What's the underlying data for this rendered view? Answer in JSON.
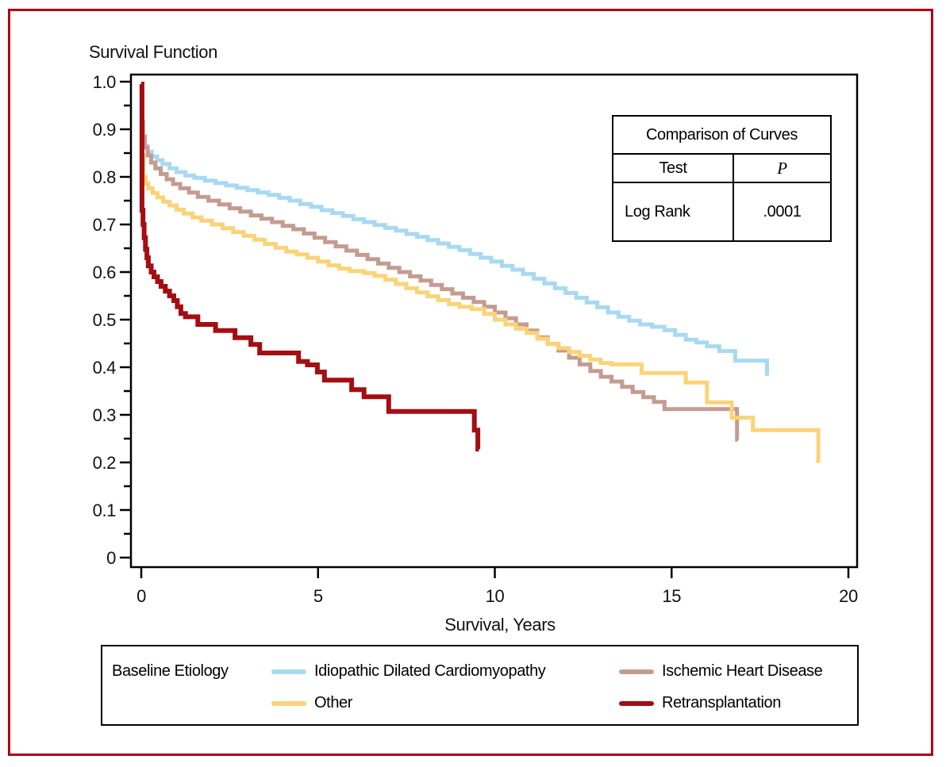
{
  "figure": {
    "title": "Survival Function",
    "border_color": "#B00119",
    "x_axis": {
      "label": "Survival, Years",
      "tick_labels": [
        "0",
        "5",
        "10",
        "15",
        "20"
      ],
      "tick_values": [
        0,
        5,
        10,
        15,
        20
      ],
      "range": [
        0,
        20
      ]
    },
    "y_axis": {
      "label": "",
      "tick_labels": [
        "1.0",
        "0.9",
        "0.8",
        "0.7",
        "0.6",
        "0.5",
        "0.4",
        "0.3",
        "0.2",
        "0.1",
        "0"
      ],
      "tick_values": [
        1.0,
        0.9,
        0.8,
        0.7,
        0.6,
        0.5,
        0.4,
        0.3,
        0.2,
        0.1,
        0
      ],
      "minor_tick_values": [
        0.95,
        0.85,
        0.75,
        0.65,
        0.55,
        0.45,
        0.35,
        0.25,
        0.15,
        0.05
      ],
      "range": [
        0,
        1
      ]
    }
  },
  "stats_table": {
    "title": "Comparison of Curves",
    "columns": [
      "Test",
      "P"
    ],
    "rows": [
      [
        "Log Rank",
        ".0001"
      ]
    ]
  },
  "legend": {
    "title": "Baseline Etiology"
  },
  "chart_data": {
    "type": "line",
    "subtype": "kaplan-meier-step",
    "title": "Survival Function",
    "xlabel": "Survival, Years",
    "ylabel": "",
    "xlim": [
      0,
      20
    ],
    "ylim": [
      0,
      1
    ],
    "grid": false,
    "legend_position": "bottom",
    "annotation": {
      "test": "Log Rank",
      "p_value": ".0001"
    },
    "series": [
      {
        "name": "Idiopathic Dilated Cardiomyopathy",
        "color": "#A8D9F2",
        "points": [
          [
            0,
            0.88
          ],
          [
            0.08,
            0.865
          ],
          [
            0.18,
            0.853
          ],
          [
            0.3,
            0.843
          ],
          [
            0.45,
            0.835
          ],
          [
            0.6,
            0.827
          ],
          [
            0.8,
            0.818
          ],
          [
            1,
            0.81
          ],
          [
            1.25,
            0.803
          ],
          [
            1.5,
            0.798
          ],
          [
            1.8,
            0.792
          ],
          [
            2.1,
            0.787
          ],
          [
            2.4,
            0.782
          ],
          [
            2.7,
            0.777
          ],
          [
            3,
            0.772
          ],
          [
            3.3,
            0.767
          ],
          [
            3.6,
            0.762
          ],
          [
            3.9,
            0.756
          ],
          [
            4.2,
            0.75
          ],
          [
            4.5,
            0.743
          ],
          [
            4.8,
            0.737
          ],
          [
            5.1,
            0.73
          ],
          [
            5.4,
            0.724
          ],
          [
            5.7,
            0.718
          ],
          [
            6,
            0.711
          ],
          [
            6.3,
            0.705
          ],
          [
            6.6,
            0.699
          ],
          [
            6.9,
            0.693
          ],
          [
            7.2,
            0.687
          ],
          [
            7.5,
            0.68
          ],
          [
            7.8,
            0.674
          ],
          [
            8.1,
            0.667
          ],
          [
            8.4,
            0.66
          ],
          [
            8.7,
            0.653
          ],
          [
            9,
            0.646
          ],
          [
            9.3,
            0.638
          ],
          [
            9.6,
            0.63
          ],
          [
            9.9,
            0.622
          ],
          [
            10.2,
            0.613
          ],
          [
            10.5,
            0.605
          ],
          [
            10.8,
            0.596
          ],
          [
            11.1,
            0.586
          ],
          [
            11.4,
            0.576
          ],
          [
            11.7,
            0.566
          ],
          [
            12,
            0.556
          ],
          [
            12.3,
            0.546
          ],
          [
            12.6,
            0.536
          ],
          [
            12.9,
            0.526
          ],
          [
            13.2,
            0.515
          ],
          [
            13.5,
            0.506
          ],
          [
            13.8,
            0.498
          ],
          [
            14.1,
            0.49
          ],
          [
            14.45,
            0.485
          ],
          [
            14.8,
            0.478
          ],
          [
            15.1,
            0.468
          ],
          [
            15.4,
            0.458
          ],
          [
            15.7,
            0.452
          ],
          [
            16,
            0.444
          ],
          [
            16.35,
            0.434
          ],
          [
            16.8,
            0.414
          ],
          [
            17.68,
            0.414
          ],
          [
            17.7,
            0.386
          ],
          [
            17.75,
            0.386
          ]
        ]
      },
      {
        "name": "Ischemic Heart Disease",
        "color": "#C49B91",
        "points": [
          [
            0,
            0.915
          ],
          [
            0.05,
            0.885
          ],
          [
            0.1,
            0.862
          ],
          [
            0.18,
            0.845
          ],
          [
            0.28,
            0.83
          ],
          [
            0.4,
            0.818
          ],
          [
            0.55,
            0.806
          ],
          [
            0.72,
            0.795
          ],
          [
            0.9,
            0.785
          ],
          [
            1.1,
            0.776
          ],
          [
            1.35,
            0.767
          ],
          [
            1.6,
            0.758
          ],
          [
            1.9,
            0.75
          ],
          [
            2.2,
            0.742
          ],
          [
            2.5,
            0.734
          ],
          [
            2.8,
            0.727
          ],
          [
            3.1,
            0.719
          ],
          [
            3.4,
            0.712
          ],
          [
            3.7,
            0.705
          ],
          [
            4,
            0.697
          ],
          [
            4.3,
            0.69
          ],
          [
            4.6,
            0.681
          ],
          [
            4.9,
            0.672
          ],
          [
            5.2,
            0.663
          ],
          [
            5.5,
            0.654
          ],
          [
            5.8,
            0.645
          ],
          [
            6.1,
            0.636
          ],
          [
            6.4,
            0.627
          ],
          [
            6.7,
            0.618
          ],
          [
            7,
            0.609
          ],
          [
            7.3,
            0.6
          ],
          [
            7.6,
            0.591
          ],
          [
            7.9,
            0.582
          ],
          [
            8.2,
            0.573
          ],
          [
            8.5,
            0.564
          ],
          [
            8.8,
            0.555
          ],
          [
            9.1,
            0.546
          ],
          [
            9.4,
            0.537
          ],
          [
            9.7,
            0.527
          ],
          [
            10,
            0.515
          ],
          [
            10.3,
            0.503
          ],
          [
            10.6,
            0.49
          ],
          [
            10.9,
            0.477
          ],
          [
            11.2,
            0.463
          ],
          [
            11.5,
            0.449
          ],
          [
            11.8,
            0.435
          ],
          [
            12.1,
            0.42
          ],
          [
            12.4,
            0.406
          ],
          [
            12.7,
            0.392
          ],
          [
            13,
            0.38
          ],
          [
            13.3,
            0.37
          ],
          [
            13.6,
            0.359
          ],
          [
            13.9,
            0.348
          ],
          [
            14.2,
            0.337
          ],
          [
            14.5,
            0.327
          ],
          [
            14.8,
            0.312
          ],
          [
            16.78,
            0.312
          ],
          [
            16.85,
            0.248
          ],
          [
            16.88,
            0.248
          ]
        ]
      },
      {
        "name": "Other",
        "color": "#FBD377",
        "points": [
          [
            0,
            0.845
          ],
          [
            0.06,
            0.8
          ],
          [
            0.12,
            0.786
          ],
          [
            0.2,
            0.776
          ],
          [
            0.32,
            0.766
          ],
          [
            0.46,
            0.757
          ],
          [
            0.62,
            0.748
          ],
          [
            0.8,
            0.74
          ],
          [
            1,
            0.731
          ],
          [
            1.2,
            0.723
          ],
          [
            1.45,
            0.715
          ],
          [
            1.7,
            0.708
          ],
          [
            2,
            0.7
          ],
          [
            2.3,
            0.692
          ],
          [
            2.6,
            0.684
          ],
          [
            2.9,
            0.676
          ],
          [
            3.2,
            0.668
          ],
          [
            3.5,
            0.659
          ],
          [
            3.8,
            0.651
          ],
          [
            4.1,
            0.643
          ],
          [
            4.4,
            0.637
          ],
          [
            4.7,
            0.63
          ],
          [
            5,
            0.622
          ],
          [
            5.3,
            0.614
          ],
          [
            5.6,
            0.607
          ],
          [
            5.9,
            0.602
          ],
          [
            6.3,
            0.598
          ],
          [
            6.6,
            0.592
          ],
          [
            6.9,
            0.584
          ],
          [
            7.2,
            0.575
          ],
          [
            7.5,
            0.566
          ],
          [
            7.8,
            0.557
          ],
          [
            8.1,
            0.549
          ],
          [
            8.4,
            0.541
          ],
          [
            8.7,
            0.533
          ],
          [
            9,
            0.527
          ],
          [
            9.35,
            0.522
          ],
          [
            9.7,
            0.512
          ],
          [
            10,
            0.5
          ],
          [
            10.3,
            0.49
          ],
          [
            10.6,
            0.481
          ],
          [
            10.9,
            0.472
          ],
          [
            11.2,
            0.46
          ],
          [
            11.5,
            0.449
          ],
          [
            11.8,
            0.44
          ],
          [
            12.1,
            0.432
          ],
          [
            12.4,
            0.424
          ],
          [
            12.7,
            0.416
          ],
          [
            13,
            0.409
          ],
          [
            13.3,
            0.406
          ],
          [
            14.1,
            0.406
          ],
          [
            14.15,
            0.388
          ],
          [
            15.35,
            0.388
          ],
          [
            15.4,
            0.368
          ],
          [
            15.95,
            0.368
          ],
          [
            16,
            0.326
          ],
          [
            16.65,
            0.326
          ],
          [
            16.7,
            0.294
          ],
          [
            17.25,
            0.294
          ],
          [
            17.3,
            0.268
          ],
          [
            19.1,
            0.268
          ],
          [
            19.15,
            0.203
          ],
          [
            19.2,
            0.203
          ]
        ]
      },
      {
        "name": "Retransplantation",
        "color": "#A30E13",
        "points": [
          [
            0,
            0.995
          ],
          [
            0.02,
            0.73
          ],
          [
            0.05,
            0.7
          ],
          [
            0.08,
            0.672
          ],
          [
            0.12,
            0.648
          ],
          [
            0.16,
            0.63
          ],
          [
            0.2,
            0.613
          ],
          [
            0.28,
            0.6
          ],
          [
            0.36,
            0.59
          ],
          [
            0.46,
            0.58
          ],
          [
            0.56,
            0.57
          ],
          [
            0.68,
            0.56
          ],
          [
            0.8,
            0.55
          ],
          [
            0.92,
            0.54
          ],
          [
            1.02,
            0.527
          ],
          [
            1.12,
            0.513
          ],
          [
            1.25,
            0.506
          ],
          [
            1.6,
            0.49
          ],
          [
            2.1,
            0.477
          ],
          [
            2.65,
            0.462
          ],
          [
            3.1,
            0.448
          ],
          [
            3.35,
            0.43
          ],
          [
            4.45,
            0.412
          ],
          [
            4.7,
            0.405
          ],
          [
            4.98,
            0.39
          ],
          [
            5.18,
            0.373
          ],
          [
            5.95,
            0.353
          ],
          [
            6.3,
            0.338
          ],
          [
            7,
            0.307
          ],
          [
            9.35,
            0.307
          ],
          [
            9.42,
            0.268
          ],
          [
            9.5,
            0.268
          ],
          [
            9.52,
            0.228
          ],
          [
            9.55,
            0.228
          ]
        ]
      }
    ]
  }
}
